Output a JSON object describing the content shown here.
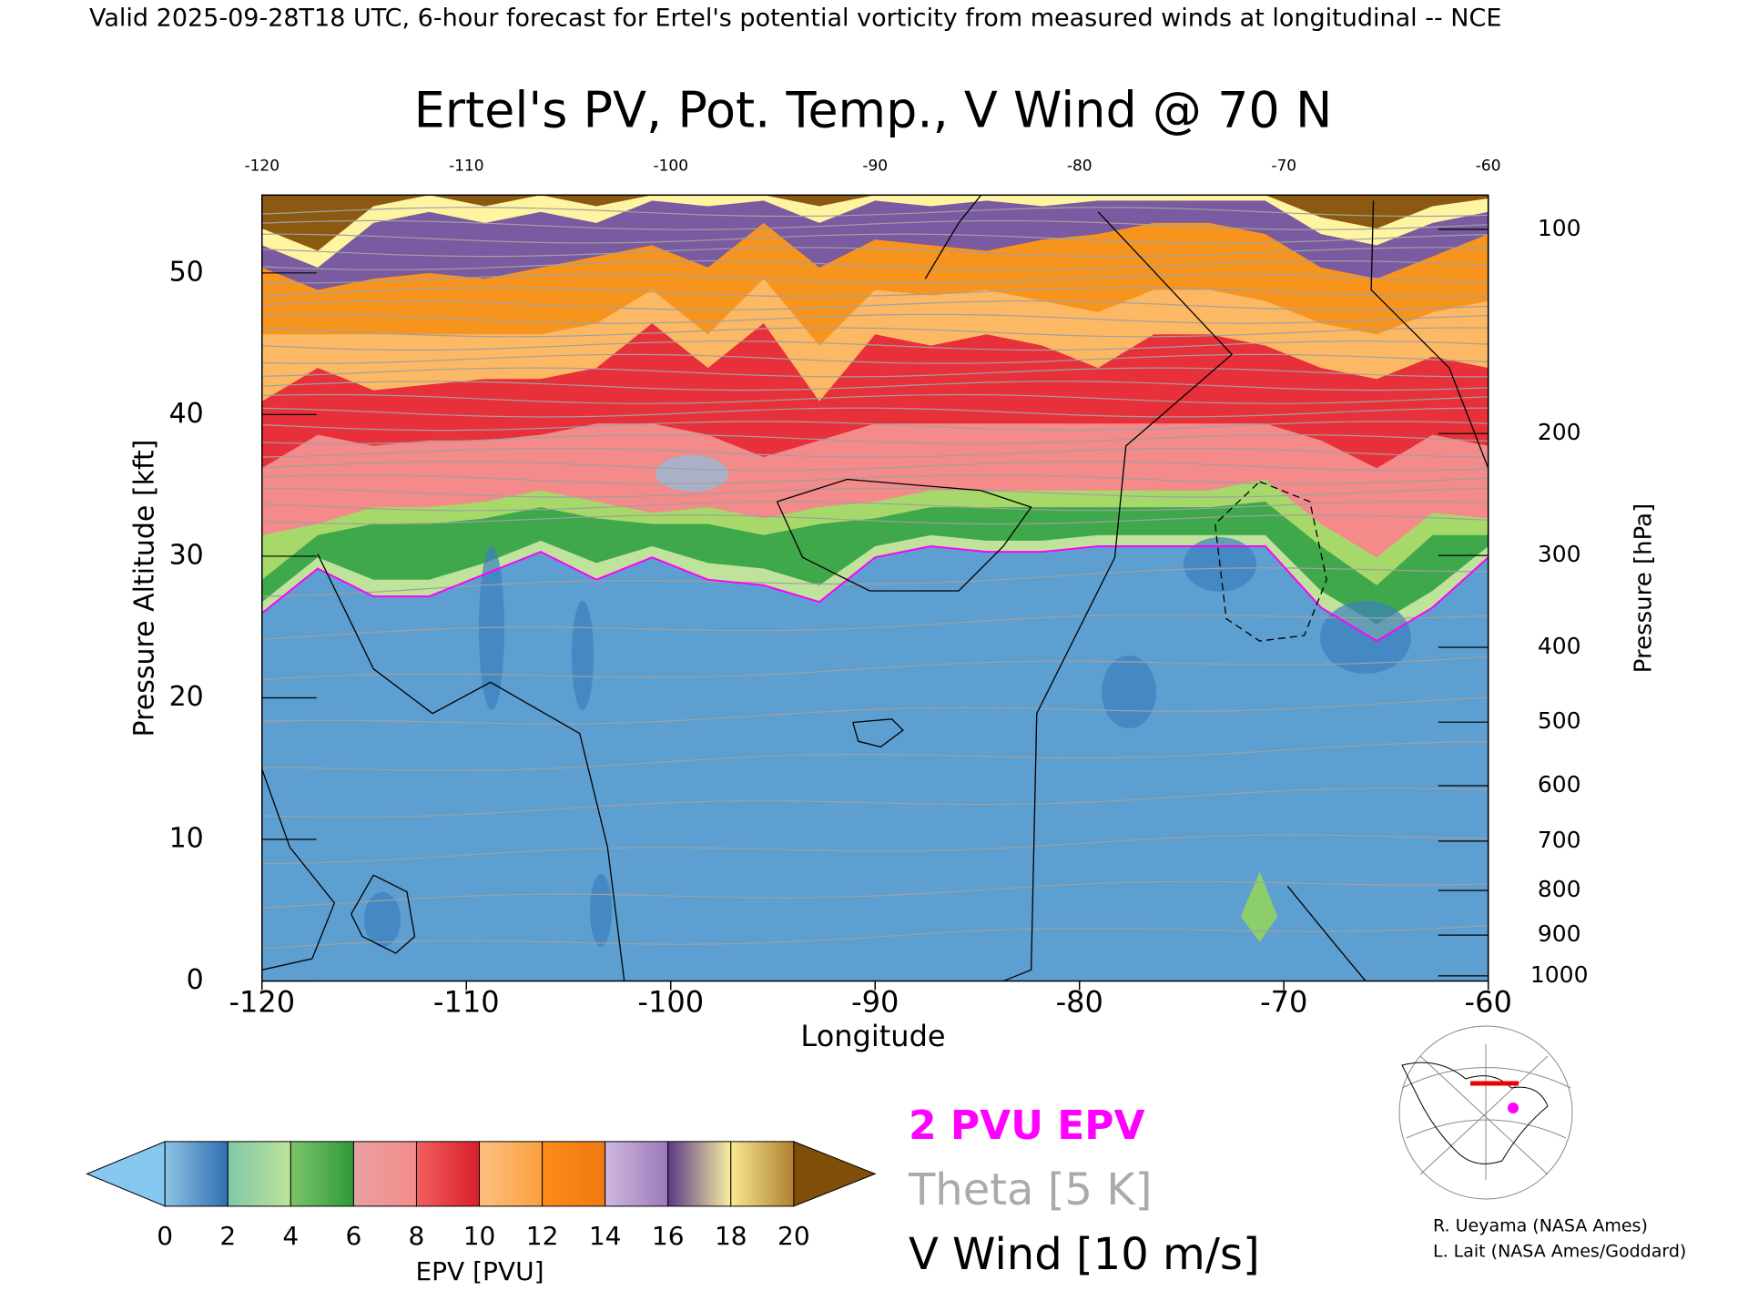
{
  "header": "Valid 2025-09-28T18 UTC, 6-hour forecast for Ertel's potential vorticity from measured winds at longitudinal -- NCE",
  "chart_data": {
    "type": "contour",
    "title": "Ertel's PV, Pot. Temp., V Wind @ 70 N",
    "x_label": "Longitude",
    "y_label": "Pressure Altitude [kft]",
    "y2_label": "Pressure [hPa]",
    "xlim": [
      -120,
      -60
    ],
    "xticks": [
      -120,
      -110,
      -100,
      -90,
      -80,
      -70,
      -60
    ],
    "ylim": [
      0,
      55.5
    ],
    "yticks": [
      0,
      10,
      20,
      30,
      40,
      50
    ],
    "y2scale": "standard-atmosphere",
    "y2lim": [
      1013.25,
      89
    ],
    "y2ticks": [
      100,
      200,
      300,
      400,
      500,
      600,
      700,
      800,
      900,
      1000
    ],
    "colorbar": {
      "label": "EPV [PVU]",
      "ticks": [
        0,
        2,
        4,
        6,
        8,
        10,
        12,
        14,
        16,
        18,
        20
      ],
      "colors": [
        [
          "#8ec3e6",
          "#2f6fb0"
        ],
        [
          "#7fc8a8",
          "#bfe39a"
        ],
        [
          "#7cc46a",
          "#2e9a3a"
        ],
        [
          "#e8a0a0",
          "#f48c8c"
        ],
        [
          "#f06060",
          "#d81e2a"
        ],
        [
          "#ffc080",
          "#f9a040"
        ],
        [
          "#fb8c1a",
          "#f07a10"
        ],
        [
          "#d0b8e0",
          "#9a7ab8"
        ],
        [
          "#5a3a8a",
          "#f8f0a0"
        ],
        [
          "#f8e890",
          "#b08030"
        ]
      ],
      "under": "#87c8f0",
      "over": "#7f4f0a"
    },
    "legend": [
      {
        "text": "2 PVU EPV",
        "color": "#ff00ff"
      },
      {
        "text": "Theta [5 K]",
        "color": "#aaaaaa"
      },
      {
        "text": "V Wind [10 m/s]",
        "color": "#000000"
      }
    ]
  },
  "credits": [
    "R. Ueyama (NASA Ames)",
    "L. Lait (NASA Ames/Goddard)"
  ]
}
